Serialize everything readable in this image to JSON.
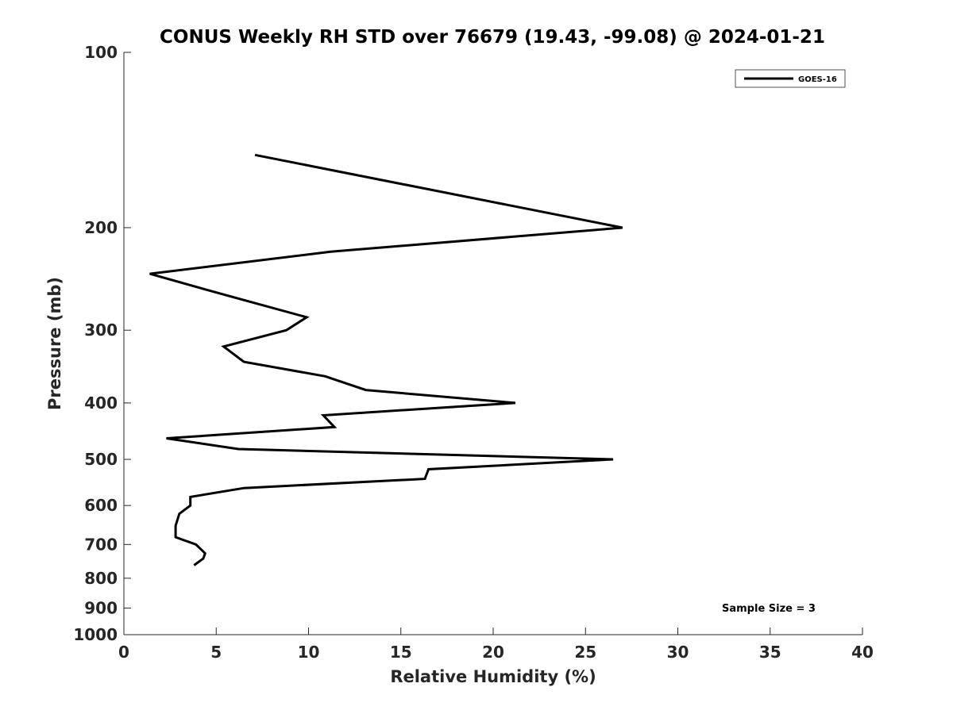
{
  "chart_data": {
    "type": "line",
    "title": "CONUS Weekly RH STD over 76679 (19.43, -99.08) @ 2024-01-21",
    "xlabel": "Relative Humidity (%)",
    "ylabel": "Pressure (mb)",
    "xlim": [
      0,
      40
    ],
    "ylim": [
      100,
      1000
    ],
    "y_scale": "log",
    "y_direction": "reversed",
    "grid": false,
    "legend_position": "top-right",
    "x_ticks": [
      "0",
      "5",
      "10",
      "15",
      "20",
      "25",
      "30",
      "35",
      "40"
    ],
    "y_ticks": [
      "100",
      "200",
      "300",
      "400",
      "500",
      "600",
      "700",
      "800",
      "900",
      "1000"
    ],
    "annotation": "Sample Size = 3",
    "series": [
      {
        "name": "GOES-16",
        "color": "#000000",
        "points": [
          {
            "x": 7.1,
            "y": 150
          },
          {
            "x": 27.0,
            "y": 200
          },
          {
            "x": 11.2,
            "y": 220
          },
          {
            "x": 1.4,
            "y": 240
          },
          {
            "x": 5.3,
            "y": 260
          },
          {
            "x": 9.9,
            "y": 285
          },
          {
            "x": 8.8,
            "y": 300
          },
          {
            "x": 5.4,
            "y": 320
          },
          {
            "x": 6.5,
            "y": 340
          },
          {
            "x": 10.9,
            "y": 360
          },
          {
            "x": 13.1,
            "y": 380
          },
          {
            "x": 21.2,
            "y": 400
          },
          {
            "x": 10.8,
            "y": 420
          },
          {
            "x": 11.4,
            "y": 440
          },
          {
            "x": 2.3,
            "y": 460
          },
          {
            "x": 6.2,
            "y": 480
          },
          {
            "x": 26.5,
            "y": 500
          },
          {
            "x": 16.5,
            "y": 520
          },
          {
            "x": 16.3,
            "y": 540
          },
          {
            "x": 6.5,
            "y": 560
          },
          {
            "x": 3.6,
            "y": 580
          },
          {
            "x": 3.6,
            "y": 600
          },
          {
            "x": 3.0,
            "y": 620
          },
          {
            "x": 2.8,
            "y": 650
          },
          {
            "x": 2.8,
            "y": 680
          },
          {
            "x": 3.9,
            "y": 700
          },
          {
            "x": 4.4,
            "y": 725
          },
          {
            "x": 4.3,
            "y": 740
          },
          {
            "x": 3.8,
            "y": 760
          }
        ]
      }
    ]
  }
}
